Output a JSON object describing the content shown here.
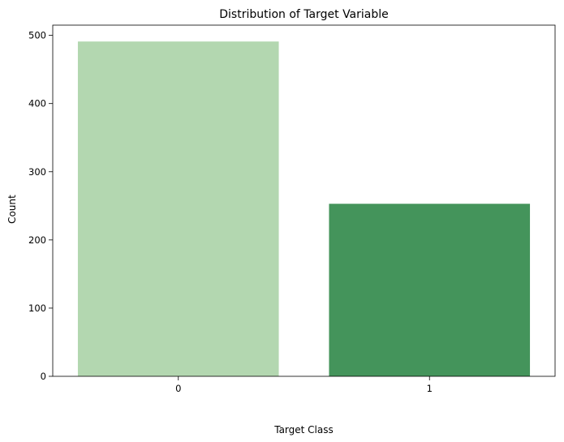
{
  "chart_data": {
    "type": "bar",
    "title": "Distribution of Target Variable",
    "xlabel": "Target Class",
    "ylabel": "Count",
    "categories": [
      "0",
      "1"
    ],
    "values": [
      491,
      253
    ],
    "colors": [
      "#b3d7b0",
      "#44945b"
    ],
    "ylim": [
      0,
      515
    ],
    "yticks": [
      0,
      100,
      200,
      300,
      400,
      500
    ],
    "grid": false,
    "legend": "none"
  }
}
